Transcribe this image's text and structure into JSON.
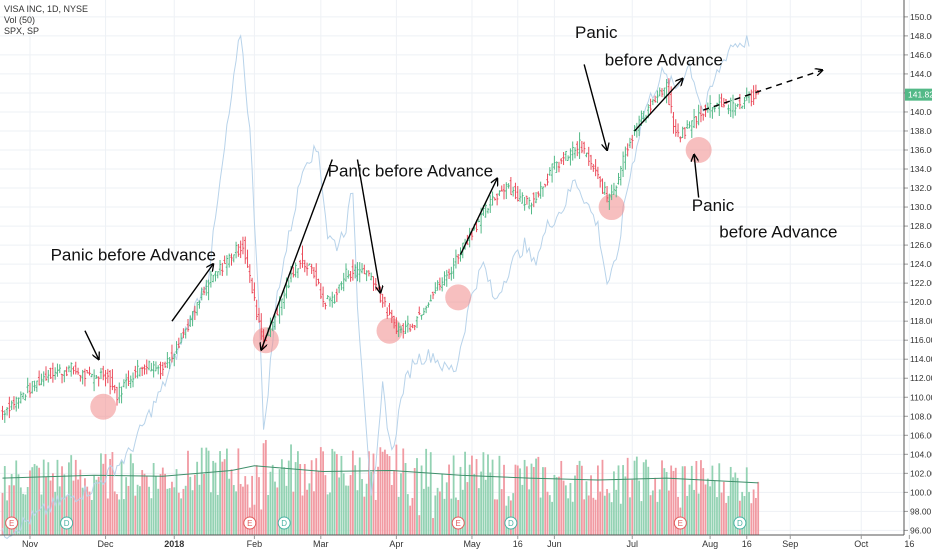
{
  "header": {
    "symbol_line": "VISA INC, 1D, NYSE",
    "volume_line": "Vol (50)",
    "compare_line": "SPX, SP"
  },
  "colors": {
    "up": "#53b987",
    "down": "#eb4d5c",
    "volume_up": "#93d2b3",
    "volume_down": "#f19aa2",
    "spx_line": "#b8d3ea",
    "vol_ma": "#3f8f6b",
    "highlight": "#f08a8a",
    "price_label_bg": "#53b987"
  },
  "chart_data": {
    "type": "bar",
    "title": "",
    "ylim": [
      95.5,
      151.5
    ],
    "y_ticks": [
      "96.00",
      "98.00",
      "100.00",
      "102.00",
      "104.00",
      "106.00",
      "108.00",
      "110.00",
      "112.00",
      "114.00",
      "116.00",
      "118.00",
      "120.00",
      "122.00",
      "124.00",
      "126.00",
      "128.00",
      "130.00",
      "132.00",
      "134.00",
      "136.00",
      "138.00",
      "140.00",
      "142.00",
      "144.00",
      "146.00",
      "148.00",
      "150.00"
    ],
    "x_ticks": [
      "Nov",
      "Dec",
      "2018",
      "Feb",
      "Mar",
      "Apr",
      "May",
      "16",
      "Jun",
      "Jul",
      "Aug",
      "16",
      "Sep",
      "Oct",
      "16"
    ],
    "last_price_label": "141.82",
    "last_price": 141.82,
    "price_keypoints": [
      [
        0,
        108.5
      ],
      [
        10,
        110.5
      ],
      [
        20,
        112.5
      ],
      [
        30,
        113
      ],
      [
        38,
        112
      ],
      [
        45,
        112.6
      ],
      [
        50,
        110.2
      ],
      [
        55,
        112
      ],
      [
        62,
        113.5
      ],
      [
        70,
        113
      ],
      [
        75,
        115
      ],
      [
        82,
        118
      ],
      [
        90,
        122
      ],
      [
        100,
        125
      ],
      [
        105,
        126
      ],
      [
        110,
        120
      ],
      [
        114,
        116
      ],
      [
        118,
        118
      ],
      [
        125,
        122
      ],
      [
        130,
        124.5
      ],
      [
        136,
        123
      ],
      [
        140,
        120
      ],
      [
        145,
        120.5
      ],
      [
        150,
        123
      ],
      [
        157,
        123.5
      ],
      [
        162,
        122.5
      ],
      [
        166,
        120
      ],
      [
        170,
        118
      ],
      [
        174,
        117
      ],
      [
        180,
        118
      ],
      [
        188,
        121
      ],
      [
        195,
        123
      ],
      [
        200,
        125.5
      ],
      [
        205,
        127.5
      ],
      [
        212,
        130
      ],
      [
        220,
        132.5
      ],
      [
        225,
        131
      ],
      [
        230,
        130.5
      ],
      [
        235,
        132
      ],
      [
        240,
        134
      ],
      [
        247,
        135.5
      ],
      [
        252,
        136.5
      ],
      [
        256,
        135
      ],
      [
        260,
        133
      ],
      [
        264,
        131
      ],
      [
        268,
        132.5
      ],
      [
        272,
        136
      ],
      [
        278,
        139
      ],
      [
        284,
        141
      ],
      [
        290,
        142.5
      ],
      [
        292,
        140
      ],
      [
        294,
        137.5
      ],
      [
        298,
        138
      ],
      [
        305,
        140
      ],
      [
        312,
        141
      ],
      [
        320,
        140.5
      ],
      [
        326,
        141.5
      ],
      [
        330,
        141.82
      ]
    ],
    "spx_keypoints": [
      [
        0,
        95.5
      ],
      [
        25,
        99
      ],
      [
        40,
        100.5
      ],
      [
        55,
        104
      ],
      [
        70,
        111
      ],
      [
        80,
        117
      ],
      [
        90,
        123
      ],
      [
        98,
        138
      ],
      [
        104,
        148.5
      ],
      [
        108,
        138
      ],
      [
        112,
        120
      ],
      [
        114,
        106
      ],
      [
        116,
        111
      ],
      [
        120,
        121
      ],
      [
        126,
        128
      ],
      [
        132,
        135
      ],
      [
        138,
        136
      ],
      [
        142,
        127
      ],
      [
        146,
        126
      ],
      [
        150,
        128
      ],
      [
        153,
        132
      ],
      [
        155,
        120
      ],
      [
        158,
        110
      ],
      [
        161,
        100
      ],
      [
        163,
        102
      ],
      [
        166,
        111
      ],
      [
        170,
        104
      ],
      [
        175,
        111
      ],
      [
        180,
        114
      ],
      [
        188,
        114.5
      ],
      [
        193,
        113
      ],
      [
        198,
        113
      ],
      [
        205,
        121
      ],
      [
        210,
        124
      ],
      [
        215,
        120
      ],
      [
        222,
        124
      ],
      [
        228,
        126
      ],
      [
        232,
        124
      ],
      [
        238,
        128
      ],
      [
        245,
        130
      ],
      [
        250,
        133
      ],
      [
        256,
        130
      ],
      [
        260,
        128
      ],
      [
        264,
        122
      ],
      [
        268,
        124
      ],
      [
        272,
        131
      ],
      [
        280,
        140
      ],
      [
        288,
        144
      ],
      [
        294,
        142.5
      ],
      [
        300,
        145
      ],
      [
        306,
        140
      ],
      [
        312,
        144
      ],
      [
        318,
        147
      ],
      [
        326,
        147.5
      ]
    ],
    "volume_ma": [
      [
        0,
        101.5
      ],
      [
        40,
        101.8
      ],
      [
        70,
        101.7
      ],
      [
        100,
        102.3
      ],
      [
        110,
        102.8
      ],
      [
        140,
        102.2
      ],
      [
        170,
        102.3
      ],
      [
        200,
        101.8
      ],
      [
        230,
        101.5
      ],
      [
        260,
        101.3
      ],
      [
        290,
        101.5
      ],
      [
        330,
        101
      ]
    ],
    "volume_spikes": [
      [
        37,
        4.6
      ],
      [
        39,
        3.2
      ],
      [
        105,
        4.6
      ],
      [
        108,
        2.4
      ],
      [
        110,
        2.7
      ],
      [
        112,
        5.6
      ],
      [
        113,
        2.2
      ],
      [
        163,
        3.2
      ],
      [
        178,
        2.6
      ],
      [
        182,
        1.6
      ],
      [
        188,
        1.3
      ],
      [
        199,
        3.2
      ],
      [
        220,
        2.6
      ],
      [
        240,
        3.0
      ],
      [
        270,
        2.8
      ],
      [
        286,
        3.0
      ],
      [
        296,
        2.4
      ]
    ],
    "earnings_markers": [
      4,
      108,
      199,
      296
    ],
    "dividend_markers": [
      28,
      123,
      222,
      322
    ],
    "highlight_circles": [
      [
        44,
        109
      ],
      [
        115,
        116
      ],
      [
        169,
        117
      ],
      [
        199,
        120.5
      ],
      [
        266,
        130
      ],
      [
        304,
        136
      ]
    ],
    "projection_arrow": [
      [
        306,
        140.2
      ],
      [
        358,
        144.4
      ]
    ],
    "pointer_arrows": [
      [
        [
          36,
          117
        ],
        [
          42,
          114
        ]
      ],
      [
        [
          74,
          118
        ],
        [
          92,
          124
        ]
      ],
      [
        [
          144,
          135
        ],
        [
          113,
          115
        ]
      ],
      [
        [
          155,
          135
        ],
        [
          165,
          121
        ]
      ],
      [
        [
          200,
          125
        ],
        [
          216,
          133
        ]
      ],
      [
        [
          254,
          145
        ],
        [
          264,
          136
        ]
      ],
      [
        [
          276,
          138
        ],
        [
          297,
          143.5
        ]
      ],
      [
        [
          304,
          131
        ],
        [
          302,
          135.5
        ]
      ]
    ],
    "annotations": [
      {
        "text": "Panic before Advance",
        "i": 21,
        "price": 124.4
      },
      {
        "text": "Panic before Advance",
        "i": 142,
        "price": 133.2
      },
      {
        "text": "Panic",
        "i": 250,
        "price": 147.8
      },
      {
        "text": "before Advance",
        "i": 263,
        "price": 144.9
      },
      {
        "text": "Panic",
        "i": 301,
        "price": 129.6
      },
      {
        "text": "before Advance",
        "i": 313,
        "price": 126.8
      }
    ],
    "x_tick_positions": [
      12,
      45,
      75,
      110,
      139,
      172,
      205,
      225,
      241,
      275,
      309,
      325,
      344,
      375,
      396
    ]
  }
}
